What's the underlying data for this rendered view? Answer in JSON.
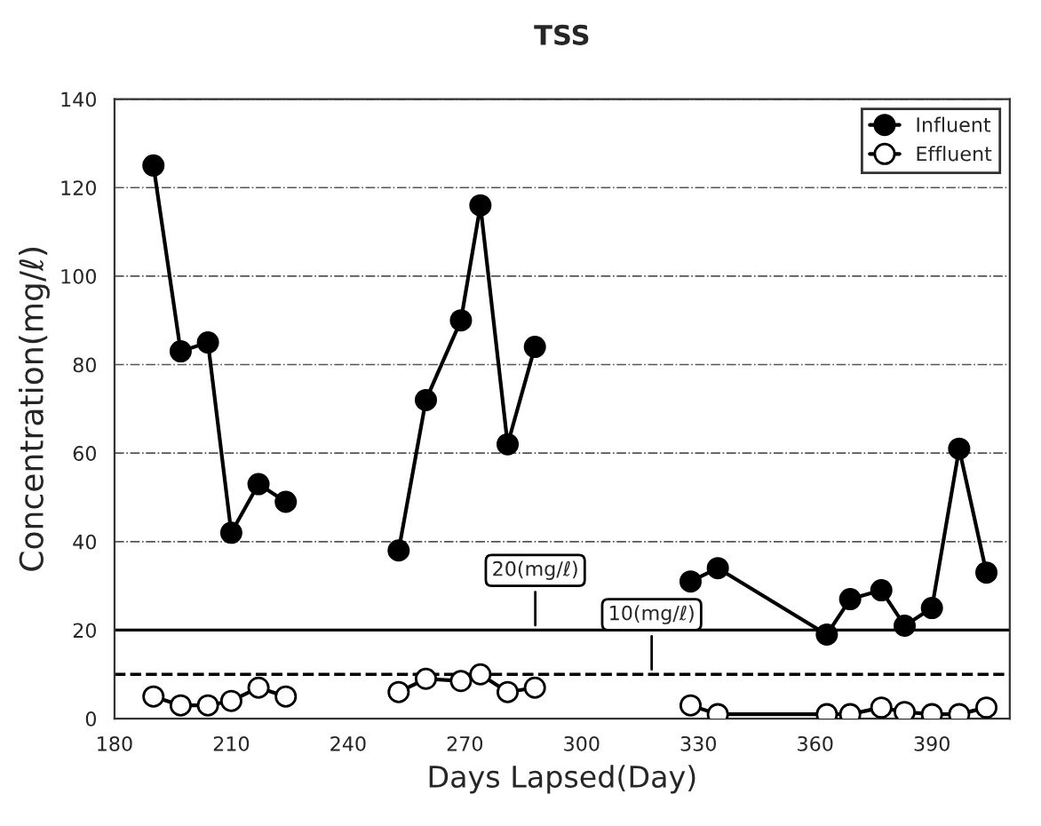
{
  "chart_data": {
    "type": "line",
    "title": "TSS",
    "xlabel": "Days Lapsed(Day)",
    "ylabel": "Concentration(mg/ℓ)",
    "xlim": [
      180,
      410
    ],
    "xticks": [
      180,
      210,
      240,
      270,
      300,
      330,
      360,
      390
    ],
    "ylim": [
      0,
      140
    ],
    "yticks": [
      0,
      20,
      40,
      60,
      80,
      100,
      120,
      140
    ],
    "grid": "y",
    "legend": "top right",
    "marker": "circle",
    "line_style": "solid",
    "series": [
      {
        "name": "Influent",
        "color": "#000000",
        "x": [
          190,
          197,
          204,
          210,
          217,
          224,
          240,
          253,
          260,
          269,
          274,
          281,
          288,
          310,
          328,
          335,
          363,
          369,
          377,
          383,
          390,
          397,
          404
        ],
        "values": [
          125,
          83,
          85,
          42,
          53,
          49,
          null,
          38,
          72,
          90,
          116,
          62,
          84,
          null,
          31,
          34,
          19,
          27,
          29,
          21,
          25,
          61,
          33
        ]
      },
      {
        "name": "Effluent",
        "color": "#000000",
        "x": [
          190,
          197,
          204,
          210,
          217,
          224,
          240,
          253,
          260,
          269,
          274,
          281,
          288,
          310,
          328,
          335,
          363,
          369,
          377,
          383,
          390,
          397,
          404
        ],
        "values": [
          5,
          3,
          3,
          4,
          7,
          5,
          null,
          6,
          9,
          8.5,
          10,
          6,
          7,
          null,
          3,
          1,
          1,
          1,
          2.5,
          1.5,
          1,
          1,
          2.5
        ]
      }
    ],
    "ref_lines": [
      {
        "axis": "y",
        "value": 20,
        "label": "20(mg/ℓ)",
        "color": "#000000",
        "line_style": "solid"
      },
      {
        "axis": "y",
        "value": 10,
        "label": "10(mg/ℓ)",
        "color": "#000000",
        "line_style": "dashed"
      }
    ]
  }
}
